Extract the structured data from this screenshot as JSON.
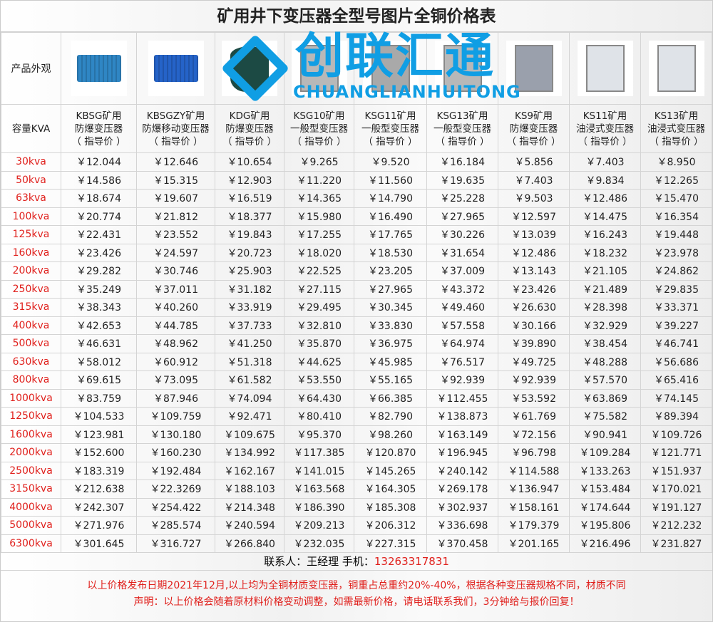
{
  "title": "矿用井下变压器全型号图片全铜价格表",
  "row_labels": {
    "appearance": "产品外观",
    "capacity": "容量KVA"
  },
  "products": [
    {
      "name": "KBSG矿用",
      "type": "防爆变压器",
      "note": "（ 指导价 ）",
      "color": "#2f86c4"
    },
    {
      "name": "KBSGZY矿用",
      "type": "防爆移动变压器",
      "note": "（ 指导价 ）",
      "color": "#2563c8"
    },
    {
      "name": "KDG矿用",
      "type": "防爆变压器",
      "note": "（ 指导价 ）",
      "color": "#1c4a44"
    },
    {
      "name": "KSG10矿用",
      "type": "一般型变压器",
      "note": "（ 指导价 ）",
      "color": "#b8b8b8"
    },
    {
      "name": "KSG11矿用",
      "type": "一般型变压器",
      "note": "（ 指导价 ）",
      "color": "#a9a9a9"
    },
    {
      "name": "KSG13矿用",
      "type": "一般型变压器",
      "note": "（ 指导价 ）",
      "color": "#b8b8b8"
    },
    {
      "name": "KS9矿用",
      "type": "防爆变压器",
      "note": "（ 指导价 ）",
      "color": "#9aa0ac"
    },
    {
      "name": "KS11矿用",
      "type": "油浸式变压器",
      "note": "（ 指导价 ）",
      "color": "#dfe3e8"
    },
    {
      "name": "KS13矿用",
      "type": "油浸式变压器",
      "note": "（ 指导价 ）",
      "color": "#dfe3e8"
    }
  ],
  "rows": [
    {
      "kva": "30kva",
      "p": [
        "￥12.044",
        "￥12.646",
        "￥10.654",
        "￥9.265",
        "￥9.520",
        "￥16.184",
        "￥5.856",
        "￥7.403",
        "￥8.950"
      ]
    },
    {
      "kva": "50kva",
      "p": [
        "￥14.586",
        "￥15.315",
        "￥12.903",
        "￥11.220",
        "￥11.560",
        "￥19.635",
        "￥7.403",
        "￥9.834",
        "￥12.265"
      ]
    },
    {
      "kva": "63kva",
      "p": [
        "￥18.674",
        "￥19.607",
        "￥16.519",
        "￥14.365",
        "￥14.790",
        "￥25.228",
        "￥9.503",
        "￥12.486",
        "￥15.470"
      ]
    },
    {
      "kva": "100kva",
      "p": [
        "￥20.774",
        "￥21.812",
        "￥18.377",
        "￥15.980",
        "￥16.490",
        "￥27.965",
        "￥12.597",
        "￥14.475",
        "￥16.354"
      ]
    },
    {
      "kva": "125kva",
      "p": [
        "￥22.431",
        "￥23.552",
        "￥19.843",
        "￥17.255",
        "￥17.765",
        "￥30.226",
        "￥13.039",
        "￥16.243",
        "￥19.448"
      ]
    },
    {
      "kva": "160kva",
      "p": [
        "￥23.426",
        "￥24.597",
        "￥20.723",
        "￥18.020",
        "￥18.530",
        "￥31.654",
        "￥12.486",
        "￥18.232",
        "￥23.978"
      ]
    },
    {
      "kva": "200kva",
      "p": [
        "￥29.282",
        "￥30.746",
        "￥25.903",
        "￥22.525",
        "￥23.205",
        "￥37.009",
        "￥13.143",
        "￥21.105",
        "￥24.862"
      ]
    },
    {
      "kva": "250kva",
      "p": [
        "￥35.249",
        "￥37.011",
        "￥31.182",
        "￥27.115",
        "￥27.965",
        "￥43.372",
        "￥23.426",
        "￥21.489",
        "￥29.835"
      ]
    },
    {
      "kva": "315kva",
      "p": [
        "￥38.343",
        "￥40.260",
        "￥33.919",
        "￥29.495",
        "￥30.345",
        "￥49.460",
        "￥26.630",
        "￥28.398",
        "￥33.371"
      ]
    },
    {
      "kva": "400kva",
      "p": [
        "￥42.653",
        "￥44.785",
        "￥37.733",
        "￥32.810",
        "￥33.830",
        "￥57.558",
        "￥30.166",
        "￥32.929",
        "￥39.227"
      ]
    },
    {
      "kva": "500kva",
      "p": [
        "￥46.631",
        "￥48.962",
        "￥41.250",
        "￥35.870",
        "￥36.975",
        "￥64.974",
        "￥39.890",
        "￥38.454",
        "￥46.741"
      ]
    },
    {
      "kva": "630kva",
      "p": [
        "￥58.012",
        "￥60.912",
        "￥51.318",
        "￥44.625",
        "￥45.985",
        "￥76.517",
        "￥49.725",
        "￥48.288",
        "￥56.686"
      ]
    },
    {
      "kva": "800kva",
      "p": [
        "￥69.615",
        "￥73.095",
        "￥61.582",
        "￥53.550",
        "￥55.165",
        "￥92.939",
        "￥92.939",
        "￥57.570",
        "￥65.416"
      ]
    },
    {
      "kva": "1000kva",
      "p": [
        "￥83.759",
        "￥87.946",
        "￥74.094",
        "￥64.430",
        "￥66.385",
        "￥112.455",
        "￥53.592",
        "￥63.869",
        "￥74.145"
      ]
    },
    {
      "kva": "1250kva",
      "p": [
        "￥104.533",
        "￥109.759",
        "￥92.471",
        "￥80.410",
        "￥82.790",
        "￥138.873",
        "￥61.769",
        "￥75.582",
        "￥89.394"
      ]
    },
    {
      "kva": "1600kva",
      "p": [
        "￥123.981",
        "￥130.180",
        "￥109.675",
        "￥95.370",
        "￥98.260",
        "￥163.149",
        "￥72.156",
        "￥90.941",
        "￥109.726"
      ]
    },
    {
      "kva": "2000kva",
      "p": [
        "￥152.600",
        "￥160.230",
        "￥134.992",
        "￥117.385",
        "￥120.870",
        "￥196.945",
        "￥96.798",
        "￥109.284",
        "￥121.771"
      ]
    },
    {
      "kva": "2500kva",
      "p": [
        "￥183.319",
        "￥192.484",
        "￥162.167",
        "￥141.015",
        "￥145.265",
        "￥240.142",
        "￥114.588",
        "￥133.263",
        "￥151.937"
      ]
    },
    {
      "kva": "3150kva",
      "p": [
        "￥212.638",
        "￥22.3269",
        "￥188.103",
        "￥163.568",
        "￥164.305",
        "￥269.178",
        "￥136.947",
        "￥153.484",
        "￥170.021"
      ]
    },
    {
      "kva": "4000kva",
      "p": [
        "￥242.307",
        "￥254.422",
        "￥214.348",
        "￥186.390",
        "￥185.308",
        "￥302.937",
        "￥158.161",
        "￥174.644",
        "￥191.127"
      ]
    },
    {
      "kva": "5000kva",
      "p": [
        "￥271.976",
        "￥285.574",
        "￥240.594",
        "￥209.213",
        "￥206.312",
        "￥336.698",
        "￥179.379",
        "￥195.806",
        "￥212.232"
      ]
    },
    {
      "kva": "6300kva",
      "p": [
        "￥301.645",
        "￥316.727",
        "￥266.840",
        "￥232.035",
        "￥227.315",
        "￥370.458",
        "￥201.165",
        "￥216.496",
        "￥231.827"
      ]
    }
  ],
  "contact": {
    "label": "联系人：王经理  手机：",
    "phone": "13263317831"
  },
  "notes": [
    "以上价格发布日期2021年12月,以上均为全铜材质变压器，铜重占总重约20%-40%，根据各种变压器规格不同，材质不同",
    "声明：以上价格会随着原材料价格变动调整，如需最新价格，请电话联系我们，3分钟给与报价回复！"
  ],
  "watermark": {
    "text": "创联汇通",
    "sub": "CHUANGLIANHUITONG",
    "color": "#109ee4"
  },
  "colors": {
    "accent": "#e0201c"
  }
}
